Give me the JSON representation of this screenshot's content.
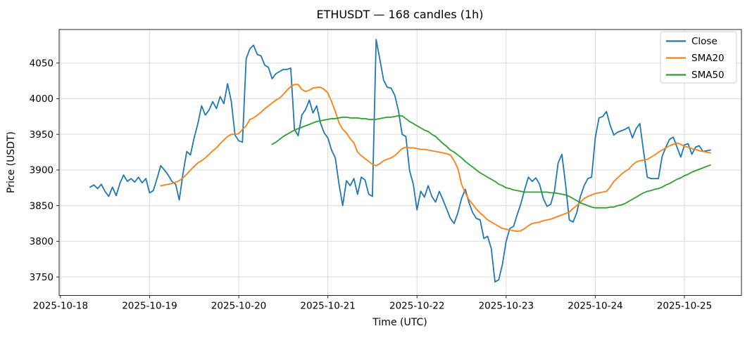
{
  "chart_data": {
    "type": "line",
    "title": "ETHUSDT — 168 candles (1h)",
    "xlabel": "Time (UTC)",
    "ylabel": "Price (USDT)",
    "grid": true,
    "legend_position": "upper right",
    "xlim": [
      -8.35,
      175.35
    ],
    "ylim": [
      3724,
      4097
    ],
    "yticks": [
      3750,
      3800,
      3850,
      3900,
      3950,
      4000,
      4050
    ],
    "xticks": [
      {
        "hour": -8,
        "label": "2025-10-18"
      },
      {
        "hour": 16,
        "label": "2025-10-19"
      },
      {
        "hour": 40,
        "label": "2025-10-20"
      },
      {
        "hour": 64,
        "label": "2025-10-21"
      },
      {
        "hour": 88,
        "label": "2025-10-22"
      },
      {
        "hour": 112,
        "label": "2025-10-23"
      },
      {
        "hour": 136,
        "label": "2025-10-24"
      },
      {
        "hour": 160,
        "label": "2025-10-25"
      }
    ],
    "series": [
      {
        "name": "Close",
        "color": "#1f77b4",
        "start_index": 0,
        "values": [
          3876,
          3879,
          3874,
          3880,
          3870,
          3863,
          3876,
          3864,
          3881,
          3893,
          3884,
          3888,
          3883,
          3890,
          3882,
          3888,
          3868,
          3871,
          3888,
          3906,
          3900,
          3893,
          3884,
          3880,
          3858,
          3895,
          3926,
          3921,
          3945,
          3965,
          3990,
          3977,
          3984,
          3996,
          3986,
          4003,
          3993,
          4021,
          3996,
          3949,
          3941,
          3939,
          4056,
          4070,
          4075,
          4062,
          4060,
          4047,
          4044,
          4028,
          4035,
          4038,
          4041,
          4041,
          4043,
          3957,
          3948,
          3977,
          3985,
          3998,
          3980,
          3990,
          3966,
          3952,
          3945,
          3928,
          3917,
          3880,
          3850,
          3885,
          3878,
          3888,
          3866,
          3890,
          3886,
          3866,
          3863,
          4083,
          4055,
          4026,
          4016,
          4015,
          4005,
          3983,
          3950,
          3947,
          3899,
          3880,
          3844,
          3870,
          3862,
          3878,
          3863,
          3855,
          3870,
          3858,
          3845,
          3832,
          3825,
          3840,
          3860,
          3873,
          3854,
          3840,
          3832,
          3830,
          3804,
          3807,
          3790,
          3743,
          3746,
          3768,
          3800,
          3818,
          3821,
          3838,
          3853,
          3873,
          3890,
          3884,
          3889,
          3880,
          3860,
          3849,
          3852,
          3870,
          3910,
          3922,
          3880,
          3830,
          3827,
          3840,
          3863,
          3878,
          3888,
          3890,
          3945,
          3973,
          3975,
          3982,
          3963,
          3949,
          3953,
          3955,
          3957,
          3960,
          3945,
          3958,
          3965,
          3926,
          3890,
          3888,
          3888,
          3888,
          3919,
          3932,
          3943,
          3946,
          3932,
          3918,
          3935,
          3937,
          3922,
          3932,
          3934,
          3926,
          3927,
          3928
        ]
      },
      {
        "name": "SMA20",
        "color": "#ff7f0e",
        "start_index": 19,
        "values": [
          3878,
          3879,
          3880,
          3881,
          3883,
          3885,
          3889,
          3894,
          3900,
          3905,
          3910,
          3913,
          3917,
          3922,
          3927,
          3931,
          3937,
          3942,
          3947,
          3950,
          3950,
          3951,
          3957,
          3962,
          3971,
          3973,
          3977,
          3981,
          3986,
          3990,
          3994,
          3998,
          4001,
          4006,
          4012,
          4017,
          4020,
          4020,
          4013,
          4010,
          4012,
          4015,
          4016,
          4016,
          4013,
          4008,
          3996,
          3982,
          3966,
          3957,
          3952,
          3944,
          3938,
          3925,
          3920,
          3916,
          3912,
          3908,
          3906,
          3909,
          3913,
          3915,
          3917,
          3920,
          3925,
          3930,
          3932,
          3931,
          3931,
          3930,
          3929,
          3929,
          3928,
          3927,
          3926,
          3925,
          3924,
          3923,
          3921,
          3913,
          3902,
          3880,
          3868,
          3858,
          3852,
          3845,
          3840,
          3835,
          3830,
          3827,
          3824,
          3821,
          3818,
          3817,
          3816,
          3815,
          3814,
          3815,
          3818,
          3822,
          3825,
          3826,
          3827,
          3829,
          3830,
          3831,
          3833,
          3835,
          3837,
          3839,
          3841,
          3846,
          3850,
          3855,
          3860,
          3863,
          3865,
          3867,
          3868,
          3869,
          3870,
          3876,
          3884,
          3889,
          3894,
          3898,
          3901,
          3907,
          3911,
          3913,
          3914,
          3915,
          3918,
          3921,
          3925,
          3928,
          3931,
          3934,
          3936,
          3938,
          3936,
          3933,
          3932,
          3930,
          3929,
          3927,
          3926,
          3925,
          3924
        ]
      },
      {
        "name": "SMA50",
        "color": "#2ca02c",
        "start_index": 49,
        "values": [
          3936,
          3939,
          3943,
          3947,
          3950,
          3953,
          3956,
          3958,
          3960,
          3962,
          3964,
          3966,
          3968,
          3969,
          3970,
          3971,
          3972,
          3972,
          3973,
          3974,
          3974,
          3973,
          3973,
          3973,
          3972,
          3972,
          3971,
          3971,
          3971,
          3972,
          3973,
          3974,
          3974,
          3975,
          3976,
          3976,
          3972,
          3968,
          3965,
          3962,
          3959,
          3956,
          3954,
          3950,
          3947,
          3942,
          3937,
          3933,
          3928,
          3925,
          3921,
          3917,
          3912,
          3908,
          3904,
          3900,
          3896,
          3893,
          3890,
          3887,
          3884,
          3880,
          3878,
          3875,
          3874,
          3872,
          3871,
          3870,
          3869,
          3869,
          3869,
          3869,
          3869,
          3869,
          3869,
          3868,
          3868,
          3867,
          3866,
          3865,
          3863,
          3860,
          3857,
          3854,
          3852,
          3850,
          3848,
          3847,
          3847,
          3847,
          3847,
          3848,
          3848,
          3850,
          3851,
          3853,
          3856,
          3859,
          3862,
          3865,
          3868,
          3870,
          3871,
          3873,
          3874,
          3876,
          3879,
          3881,
          3884,
          3887,
          3889,
          3892,
          3894,
          3897,
          3899,
          3901,
          3903,
          3905,
          3907
        ]
      }
    ],
    "style": {
      "grid_color": "#dcdcdc",
      "spine_color": "#262626",
      "legend_border": "#cccccc",
      "background": "#ffffff"
    }
  }
}
